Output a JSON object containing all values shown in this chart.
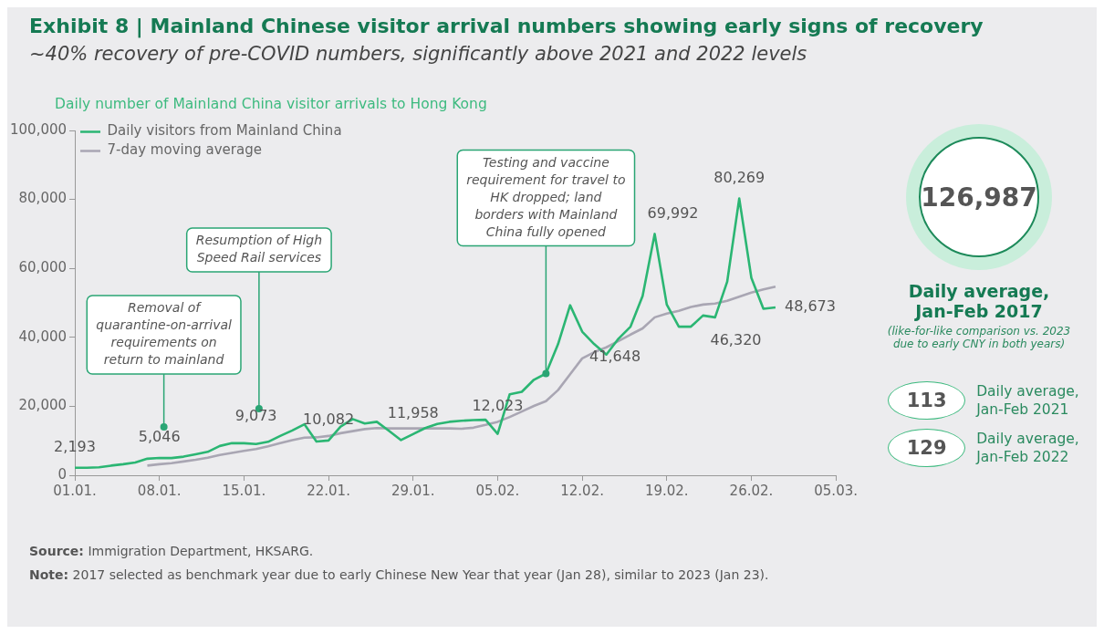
{
  "chart_data": [
    {
      "type": "line",
      "title": "Exhibit 8 | Mainland Chinese visitor arrival numbers showing early signs of recovery",
      "subtitle": "~40% recovery of pre-COVID numbers, significantly above 2021 and 2022 levels",
      "ylabel": "Daily number of Mainland China visitor arrivals to Hong Kong",
      "x": [
        "2023-01-01",
        "2023-01-02",
        "2023-01-03",
        "2023-01-04",
        "2023-01-05",
        "2023-01-06",
        "2023-01-07",
        "2023-01-08",
        "2023-01-09",
        "2023-01-10",
        "2023-01-11",
        "2023-01-12",
        "2023-01-13",
        "2023-01-14",
        "2023-01-15",
        "2023-01-16",
        "2023-01-17",
        "2023-01-18",
        "2023-01-19",
        "2023-01-20",
        "2023-01-21",
        "2023-01-22",
        "2023-01-23",
        "2023-01-24",
        "2023-01-25",
        "2023-01-26",
        "2023-01-27",
        "2023-01-28",
        "2023-01-29",
        "2023-01-30",
        "2023-01-31",
        "2023-02-01",
        "2023-02-02",
        "2023-02-03",
        "2023-02-04",
        "2023-02-05",
        "2023-02-06",
        "2023-02-07",
        "2023-02-08",
        "2023-02-09",
        "2023-02-10",
        "2023-02-11",
        "2023-02-12",
        "2023-02-13",
        "2023-02-14",
        "2023-02-15",
        "2023-02-16",
        "2023-02-17",
        "2023-02-18",
        "2023-02-19",
        "2023-02-20",
        "2023-02-21",
        "2023-02-22",
        "2023-02-23",
        "2023-02-24",
        "2023-02-25",
        "2023-02-26",
        "2023-02-27",
        "2023-02-28"
      ],
      "series": [
        {
          "name": "Daily visitors from Mainland China",
          "color": "#2bb673",
          "values": [
            2193,
            2200,
            2300,
            2800,
            3200,
            3700,
            4800,
            5046,
            5000,
            5400,
            6100,
            6800,
            8500,
            9300,
            9300,
            9073,
            9700,
            11400,
            13000,
            14800,
            9800,
            10082,
            14100,
            16300,
            15000,
            15500,
            12900,
            10200,
            11958,
            13700,
            14900,
            15500,
            15800,
            16000,
            16100,
            12023,
            23500,
            24200,
            27700,
            29500,
            38000,
            49300,
            41648,
            38000,
            35000,
            39600,
            43100,
            52000,
            69992,
            49500,
            43100,
            43100,
            46320,
            45800,
            56100,
            80269,
            57300,
            48300,
            48673
          ],
          "value_labels": [
            "2,193",
            null,
            null,
            null,
            null,
            null,
            null,
            "5,046",
            null,
            null,
            null,
            null,
            null,
            null,
            null,
            "9,073",
            null,
            null,
            null,
            null,
            null,
            "10,082",
            null,
            null,
            null,
            null,
            null,
            null,
            "11,958",
            null,
            null,
            null,
            null,
            null,
            null,
            "12,023",
            null,
            null,
            null,
            null,
            null,
            null,
            "41,648",
            null,
            null,
            null,
            null,
            null,
            "69,992",
            null,
            null,
            null,
            "46,320",
            null,
            null,
            "80,269",
            null,
            null,
            "48,673"
          ]
        },
        {
          "name": "7-day moving average",
          "color": "#a9a6b3",
          "x": [
            "2023-01-07",
            "2023-01-08",
            "2023-01-09",
            "2023-01-10",
            "2023-01-11",
            "2023-01-12",
            "2023-01-13",
            "2023-01-14",
            "2023-01-15",
            "2023-01-16",
            "2023-01-17",
            "2023-01-18",
            "2023-01-19",
            "2023-01-20",
            "2023-01-21",
            "2023-01-22",
            "2023-01-23",
            "2023-01-24",
            "2023-01-25",
            "2023-01-26",
            "2023-01-27",
            "2023-01-28",
            "2023-01-29",
            "2023-01-30",
            "2023-01-31",
            "2023-02-01",
            "2023-02-02",
            "2023-02-03",
            "2023-02-04",
            "2023-02-05",
            "2023-02-06",
            "2023-02-07",
            "2023-02-08",
            "2023-02-09",
            "2023-02-10",
            "2023-02-11",
            "2023-02-12",
            "2023-02-13",
            "2023-02-14",
            "2023-02-15",
            "2023-02-16",
            "2023-02-17",
            "2023-02-18",
            "2023-02-19",
            "2023-02-20",
            "2023-02-21",
            "2023-02-22",
            "2023-02-23",
            "2023-02-24",
            "2023-02-25",
            "2023-02-26",
            "2023-02-27",
            "2023-02-28"
          ],
          "values": [
            2800,
            3200,
            3500,
            4000,
            4500,
            5100,
            5900,
            6500,
            7100,
            7600,
            8400,
            9300,
            10200,
            10900,
            11000,
            11400,
            12200,
            12800,
            13400,
            13700,
            13600,
            13600,
            13600,
            13600,
            13600,
            13600,
            13500,
            13800,
            14600,
            15500,
            16900,
            18500,
            20100,
            21500,
            24700,
            29300,
            33900,
            35700,
            37100,
            38900,
            40800,
            42600,
            45800,
            46900,
            47700,
            48800,
            49500,
            49800,
            50600,
            51800,
            53000,
            53900,
            54700
          ]
        }
      ],
      "xlim": [
        "2023-01-01",
        "2023-03-05"
      ],
      "xticks": [
        {
          "value": "2023-01-01",
          "label": "01.01."
        },
        {
          "value": "2023-01-08",
          "label": "08.01."
        },
        {
          "value": "2023-01-15",
          "label": "15.01."
        },
        {
          "value": "2023-01-22",
          "label": "22.01."
        },
        {
          "value": "2023-01-29",
          "label": "29.01."
        },
        {
          "value": "2023-02-05",
          "label": "05.02."
        },
        {
          "value": "2023-02-12",
          "label": "12.02."
        },
        {
          "value": "2023-02-19",
          "label": "19.02."
        },
        {
          "value": "2023-02-26",
          "label": "26.02."
        },
        {
          "value": "2023-03-05",
          "label": "05.03."
        }
      ],
      "ylim": [
        0,
        100000
      ],
      "yticks": [
        {
          "value": 0,
          "label": "0"
        },
        {
          "value": 20000,
          "label": "20,000"
        },
        {
          "value": 40000,
          "label": "40,000"
        },
        {
          "value": 60000,
          "label": "60,000"
        },
        {
          "value": 80000,
          "label": "80,000"
        },
        {
          "value": 100000,
          "label": "100,000"
        }
      ],
      "grid": false,
      "legend": "top left",
      "marker": "none",
      "line_style": "solid",
      "annotations": [
        "Removal of quarantine-on-arrival requirements on return to mainland",
        "Resumption of High Speed Rail services",
        {
          "text": "Testing and vaccine requirement for travel to HK dropped; land borders with Mainland China fully opened",
          "x": "2023-02-09",
          "y": 29500
        },
        "Source: Immigration Department, HKSARG.",
        "Note: 2017 selected as benchmark year due to early Chinese New Year that year (Jan 28), similar to 2023 (Jan 23)."
      ]
    },
    {
      "type": "other",
      "annotations": [
        "126,987",
        "Daily average, Jan-Feb 2017",
        "(like-for-like comparison vs. 2023 due to early CNY in both years)",
        "113",
        "Daily average, Jan-Feb 2021",
        "129",
        "Daily average, Jan-Feb 2022"
      ]
    }
  ]
}
